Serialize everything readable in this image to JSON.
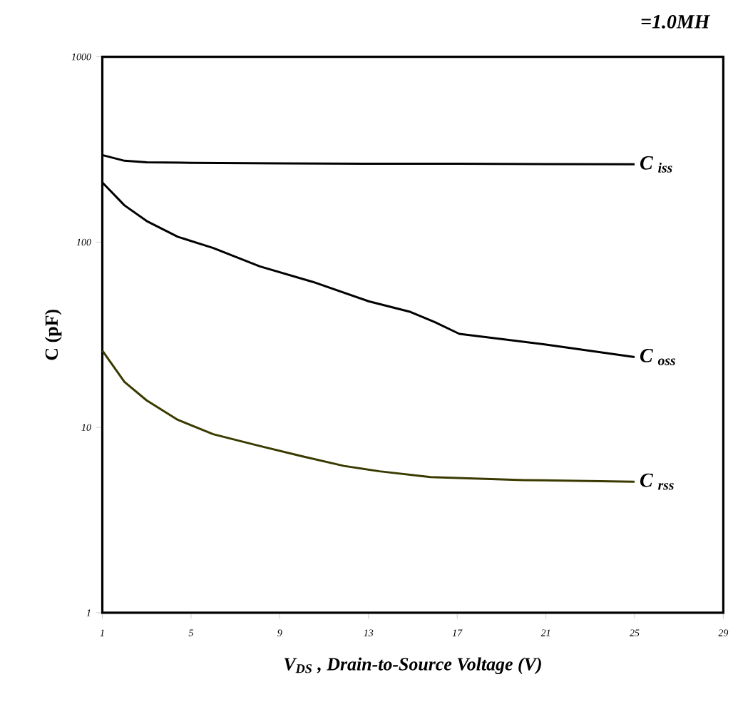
{
  "chart_data": {
    "type": "line",
    "xlabel": "V$_{DS}$ , Drain-to-Source Voltage (V)",
    "ylabel": "C (pF)",
    "annotations": [
      "=1.0MH"
    ],
    "log": "y",
    "xlim": [
      1,
      29
    ],
    "ylim": [
      1,
      1000
    ],
    "xticks": [
      1,
      5,
      9,
      13,
      17,
      21,
      25,
      29
    ],
    "yticks": [
      1,
      10,
      100,
      1000
    ],
    "series": [
      {
        "name": "C $_{iss}$",
        "color": "#000000",
        "x": [
          1,
          2,
          3,
          5,
          9,
          13,
          17,
          25
        ],
        "values": [
          295,
          275,
          270,
          268,
          266,
          265,
          265,
          263
        ]
      },
      {
        "name": "C $_{oss}$",
        "color": "#000000",
        "x": [
          1,
          2,
          3,
          4.4,
          6,
          8.1,
          10.5,
          13,
          14.9,
          16,
          17.1,
          19,
          21,
          25
        ],
        "values": [
          210,
          158,
          130,
          107,
          93,
          74,
          61,
          48,
          42,
          37,
          32,
          30,
          28,
          24
        ]
      },
      {
        "name": "C $_{rss}$",
        "color": "#3a3a00",
        "x": [
          1,
          2,
          3,
          4.4,
          6,
          8,
          10,
          11.9,
          13.5,
          15.8,
          20,
          25
        ],
        "values": [
          26,
          17.6,
          14,
          11,
          9.2,
          8,
          7,
          6.2,
          5.8,
          5.4,
          5.2,
          5.1
        ]
      }
    ]
  }
}
